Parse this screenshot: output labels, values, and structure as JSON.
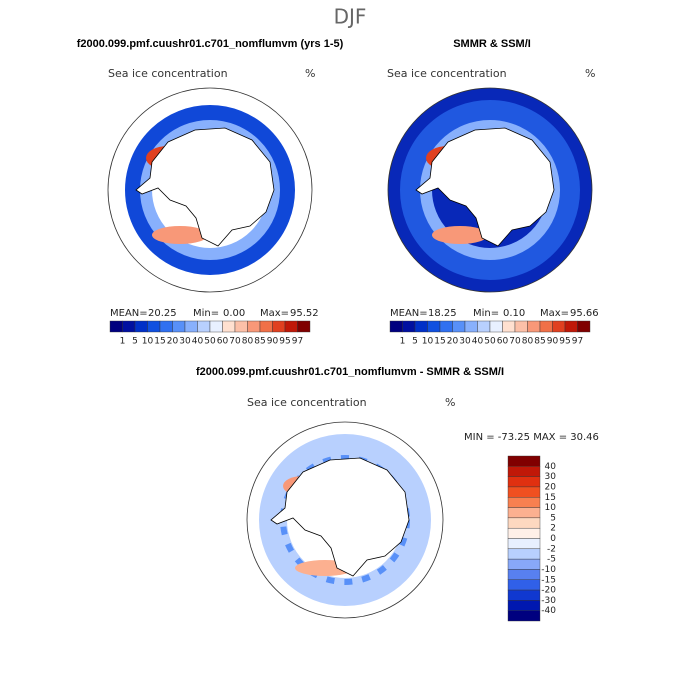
{
  "title": "DJF",
  "panels": [
    {
      "header": "f2000.099.pmf.cuushr01.c701_nomflumvm (yrs 1-5)",
      "label": "Sea ice concentration",
      "unit": "%",
      "stats": [
        "MEAN=",
        "20.25",
        "Min=",
        "0.00",
        "Max=",
        "95.52"
      ]
    },
    {
      "header": "SMMR & SSM/I",
      "label": "Sea ice concentration",
      "unit": "%",
      "stats": [
        "MEAN=",
        "18.25",
        "Min=",
        "0.10",
        "Max=",
        "95.66"
      ]
    },
    {
      "header": "f2000.099.pmf.cuushr01.c701_nomflumvm - SMMR & SSM/I",
      "label": "Sea ice concentration",
      "unit": "%",
      "stats": [
        "MIN = -73.25 MAX =  30.46"
      ]
    }
  ],
  "colorbar": {
    "labels": [
      "1",
      "5",
      "10",
      "15",
      "20",
      "30",
      "40",
      "50",
      "60",
      "70",
      "80",
      "85",
      "90",
      "95",
      "97"
    ],
    "colors": [
      "#00007f",
      "#0010a0",
      "#0030c8",
      "#1050e0",
      "#3070f0",
      "#5890f8",
      "#88b0fc",
      "#b8d0fe",
      "#e8f0ff",
      "#ffe0d0",
      "#fcc0a8",
      "#f89878",
      "#f07048",
      "#e04020",
      "#c01808",
      "#800000"
    ]
  },
  "diff_colorbar": {
    "labels": [
      "40",
      "30",
      "20",
      "15",
      "10",
      "5",
      "2",
      "0",
      "-2",
      "-5",
      "-10",
      "-15",
      "-20",
      "-30",
      "-40"
    ],
    "colors": [
      "#800000",
      "#c01808",
      "#e03010",
      "#f05020",
      "#f88050",
      "#fcb090",
      "#fdd8c0",
      "#fff0e8",
      "#e8f0ff",
      "#b8d0fe",
      "#88a8f8",
      "#5880f0",
      "#3060e8",
      "#1038d0",
      "#0018b0",
      "#00007f"
    ]
  }
}
